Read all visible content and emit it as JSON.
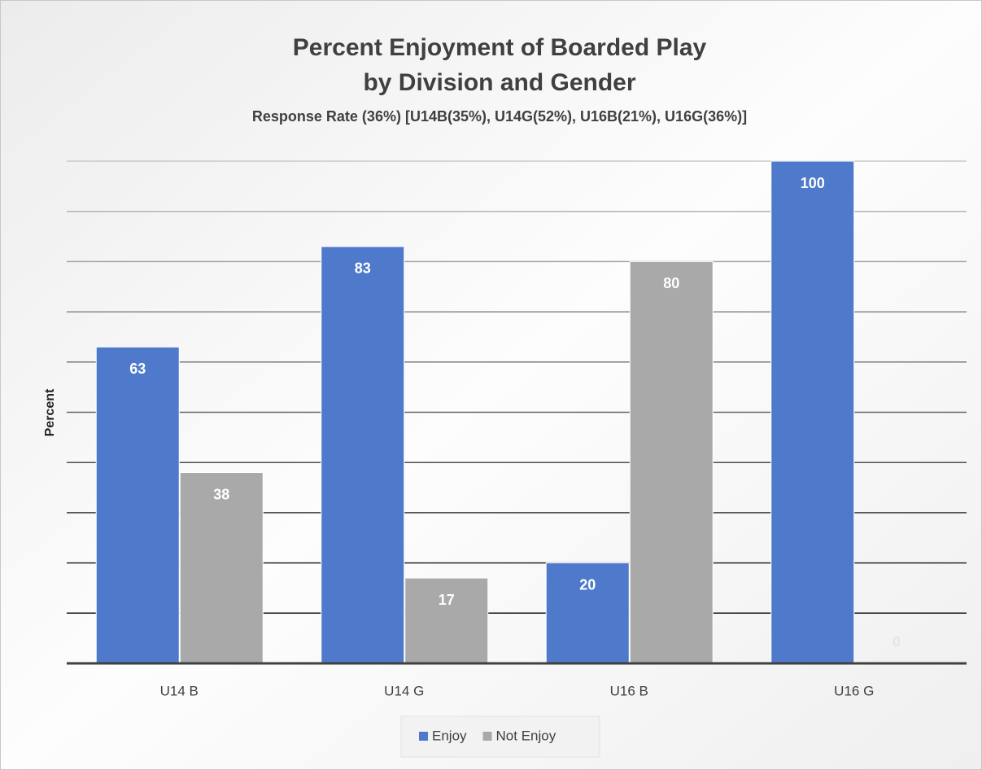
{
  "chart_data": {
    "type": "bar",
    "title": [
      "Percent Enjoyment of Boarded Play",
      "by Division and Gender"
    ],
    "subtitle": "Response Rate (36%) [U14B(35%), U14G(52%), U16B(21%), U16G(36%)]",
    "y_label": "Percent",
    "categories": [
      "U14 B",
      "U14 G",
      "U16 B",
      "U16 G"
    ],
    "series": [
      {
        "name": "Enjoy",
        "color": "#4f7acb",
        "values": [
          63,
          83,
          20,
          100
        ]
      },
      {
        "name": "Not Enjoy",
        "color": "#a9a9a9",
        "values": [
          38,
          17,
          80,
          0
        ]
      }
    ],
    "ylim": [
      0,
      100
    ],
    "yticks": [
      0,
      10,
      20,
      30,
      40,
      50,
      60,
      70,
      80,
      90,
      100
    ],
    "grid": true,
    "legend": "bottom"
  }
}
